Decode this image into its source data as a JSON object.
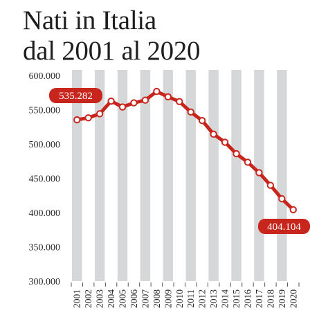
{
  "title_line1": "Nati in Italia",
  "title_line2": "dal 2001 al 2020",
  "colors": {
    "line": "#c8261d",
    "column_band": "#d5d7d9",
    "marker_fill": "#ffffff",
    "callout_bg": "#c8261d",
    "callout_text": "#ffffff"
  },
  "chart_data": {
    "type": "line",
    "x": [
      "2001",
      "2002",
      "2003",
      "2004",
      "2005",
      "2006",
      "2007",
      "2008",
      "2009",
      "2010",
      "2011",
      "2012",
      "2013",
      "2014",
      "2015",
      "2016",
      "2017",
      "2018",
      "2019",
      "2020"
    ],
    "series": [
      {
        "values": [
          535282,
          538198,
          544063,
          562599,
          554022,
          560010,
          563933,
          576659,
          568857,
          561944,
          546607,
          534186,
          514308,
          502596,
          485780,
          473438,
          458151,
          439747,
          420084,
          404104
        ]
      }
    ],
    "ylim": [
      300000,
      600000
    ],
    "yticks": [
      "300.000",
      "350.000",
      "400.000",
      "450.000",
      "500.000",
      "550.000",
      "600.000"
    ],
    "grid": false,
    "alternating_year_bands": true,
    "callouts": [
      {
        "label": "535.282",
        "index": 0
      },
      {
        "label": "404.104",
        "index": 19
      }
    ]
  }
}
